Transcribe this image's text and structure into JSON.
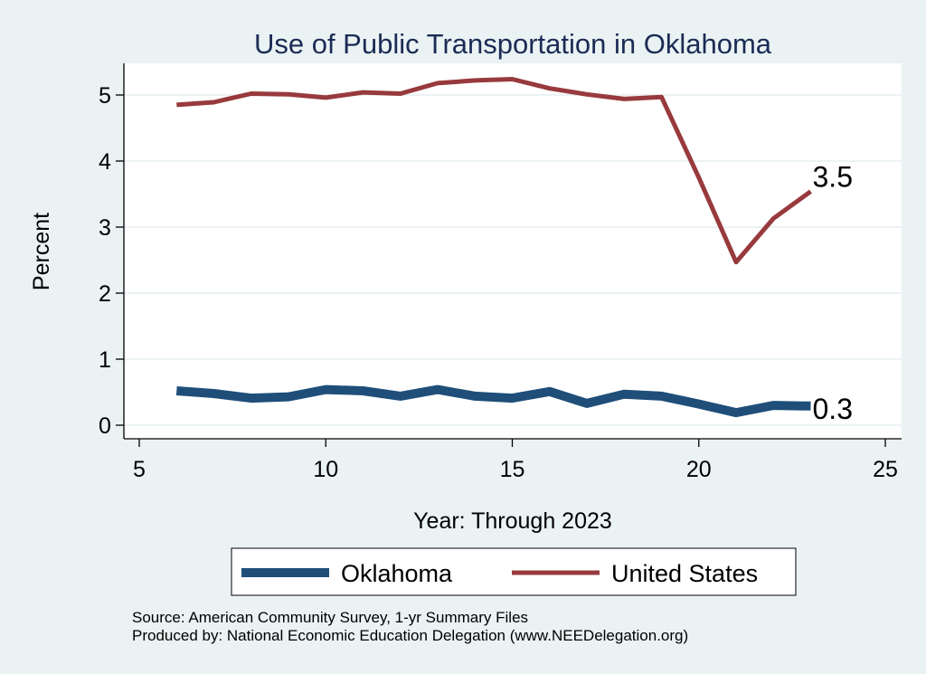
{
  "chart_data": {
    "type": "line",
    "title": "Use of Public Transportation in Oklahoma",
    "xlabel": "Year: Through 2023",
    "ylabel": "Percent",
    "xlim": [
      5,
      25
    ],
    "ylim": [
      0,
      5.25
    ],
    "xticks": [
      5,
      10,
      15,
      20,
      25
    ],
    "yticks": [
      0,
      1,
      2,
      3,
      4,
      5
    ],
    "grid": "horizontal",
    "legend_position": "bottom",
    "series": [
      {
        "name": "Oklahoma",
        "color": "#1f4e79",
        "end_label": "0.3",
        "x": [
          6,
          7,
          8,
          9,
          10,
          11,
          12,
          13,
          14,
          15,
          16,
          17,
          18,
          19,
          20,
          21,
          22,
          23
        ],
        "y": [
          0.52,
          0.48,
          0.41,
          0.43,
          0.54,
          0.52,
          0.44,
          0.54,
          0.44,
          0.41,
          0.51,
          0.33,
          0.47,
          0.44,
          0.32,
          0.19,
          0.3,
          0.29
        ]
      },
      {
        "name": "United States",
        "color": "#983a3d",
        "end_label": "3.5",
        "x": [
          6,
          7,
          8,
          9,
          10,
          11,
          12,
          13,
          14,
          15,
          16,
          17,
          18,
          19,
          20,
          21,
          22,
          23
        ],
        "y": [
          4.85,
          4.89,
          5.02,
          5.01,
          4.96,
          5.04,
          5.02,
          5.18,
          5.22,
          5.24,
          5.1,
          5.01,
          4.94,
          4.97,
          3.75,
          2.47,
          3.13,
          3.54
        ]
      }
    ],
    "notes": [
      "Source: American Community Survey, 1-yr Summary Files",
      "Produced by: National Economic Education Delegation (www.NEEDelegation.org)"
    ]
  }
}
